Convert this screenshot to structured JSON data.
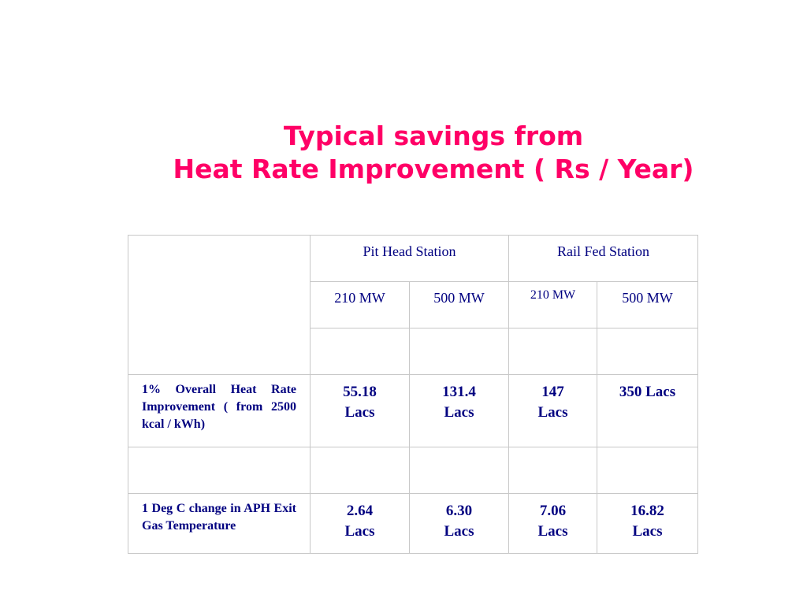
{
  "title": {
    "line1": "Typical savings from",
    "line2": "Heat Rate Improvement ( Rs / Year)"
  },
  "table": {
    "group_headers": [
      "Pit Head Station",
      "Rail Fed Station"
    ],
    "sub_headers": [
      "210 MW",
      "500 MW",
      "210 MW",
      "500 MW"
    ],
    "rows": [
      {
        "label": "1% Overall Heat Rate Improvement ( from 2500 kcal / kWh)",
        "values": [
          [
            "55.18",
            "Lacs"
          ],
          [
            "131.4",
            "Lacs"
          ],
          [
            "147",
            "Lacs"
          ],
          [
            "350 Lacs",
            ""
          ]
        ]
      },
      {
        "label": "1 Deg C change in APH Exit Gas Temperature",
        "values": [
          [
            "2.64",
            "Lacs"
          ],
          [
            "6.30",
            "Lacs"
          ],
          [
            "7.06",
            "Lacs"
          ],
          [
            "16.82",
            "Lacs"
          ]
        ]
      }
    ]
  },
  "colors": {
    "title": "#ff0066",
    "table_text": "#000080",
    "border": "#c8c8c8"
  }
}
